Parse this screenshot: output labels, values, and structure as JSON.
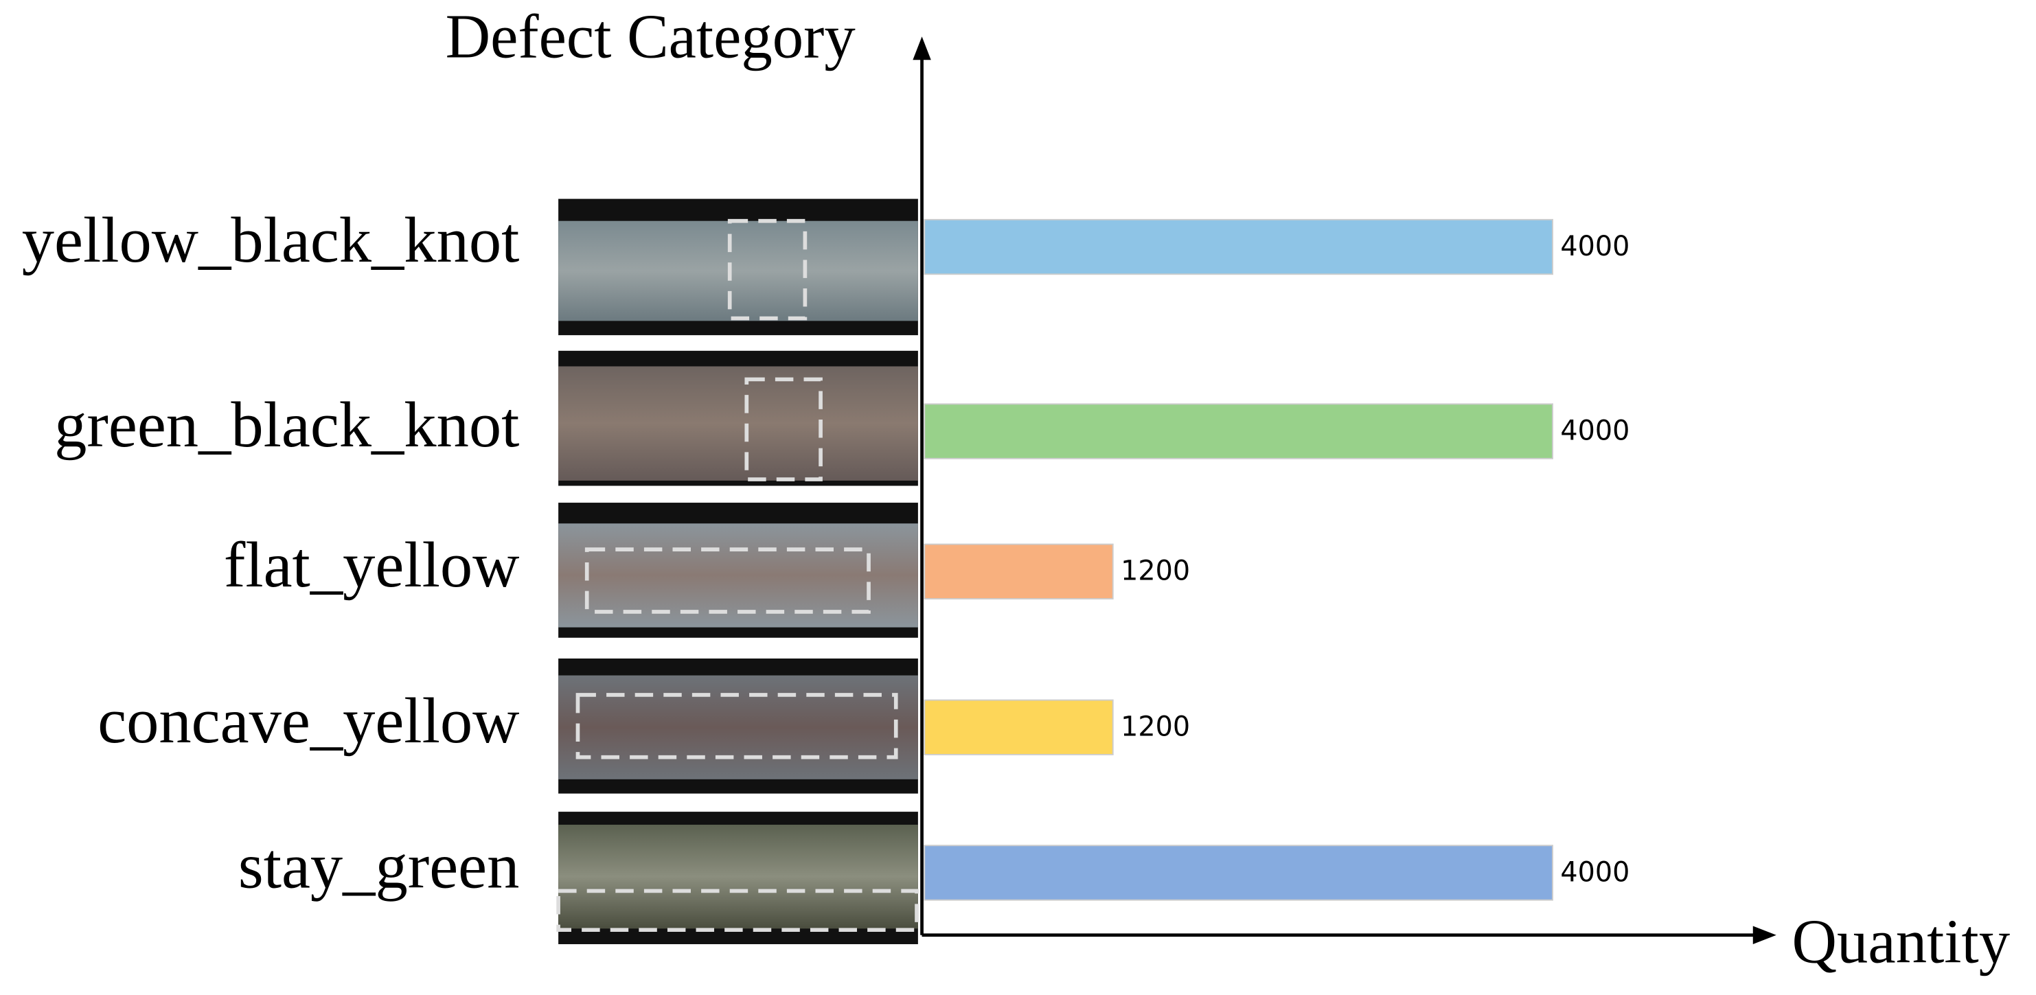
{
  "chart_data": {
    "type": "bar",
    "orientation": "horizontal",
    "title": "Defect Category",
    "x_label": "Quantity",
    "categories": [
      "yellow_black_knot",
      "green_black_knot",
      "flat_yellow",
      "concave_yellow",
      "stay_green"
    ],
    "values": [
      4000,
      4000,
      1200,
      1200,
      4000
    ],
    "colors": [
      "#8ec4e6",
      "#98d18a",
      "#f8b07e",
      "#fdd659",
      "#86abdf"
    ],
    "xlim": [
      0,
      5400
    ]
  }
}
